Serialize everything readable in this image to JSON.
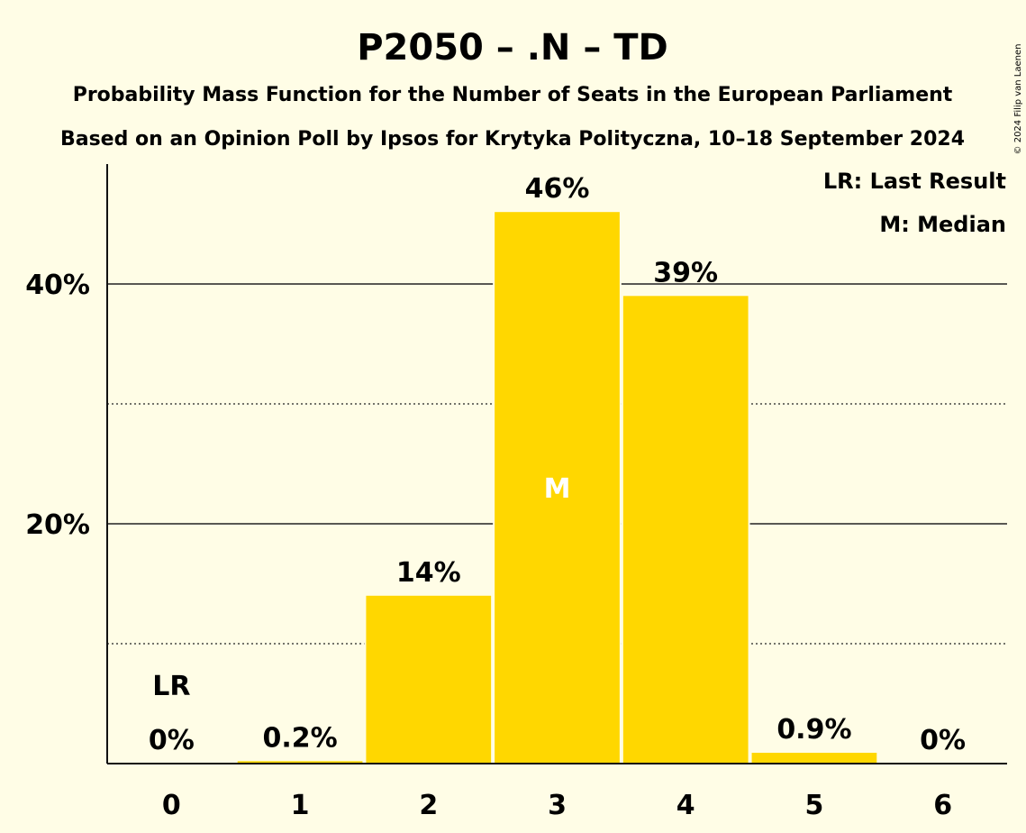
{
  "chart_data": {
    "type": "bar",
    "title": "P2050 – .N – TD",
    "subtitle_1": "Probability Mass Function for the Number of Seats in the European Parliament",
    "subtitle_2": "Based on an Opinion Poll by Ipsos for Krytyka Polityczna, 10–18 September 2024",
    "categories": [
      "0",
      "1",
      "2",
      "3",
      "4",
      "5",
      "6"
    ],
    "values": [
      0,
      0.2,
      14,
      46,
      39,
      0.9,
      0
    ],
    "value_labels": [
      "0%",
      "0.2%",
      "14%",
      "46%",
      "39%",
      "0.9%",
      "0%"
    ],
    "y_tick_labels": [
      "20%",
      "40%"
    ],
    "y_major_ticks": [
      20,
      40
    ],
    "y_minor_gridlines": [
      10,
      30
    ],
    "ylim": [
      0,
      50
    ],
    "last_result_index": 0,
    "last_result_marker": "LR",
    "median_index": 3,
    "median_marker": "M",
    "legend": {
      "last_result": "LR: Last Result",
      "median": "M: Median",
      "position": "top-right"
    },
    "bar_color": "#FFD700",
    "copyright": "© 2024 Filip van Laenen"
  }
}
